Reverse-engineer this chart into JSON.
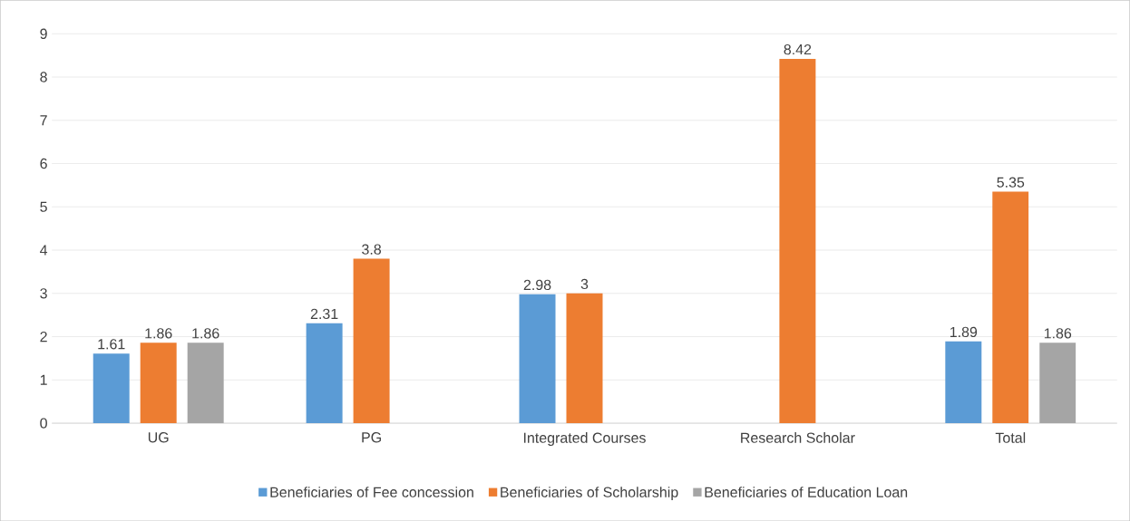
{
  "chart_data": {
    "type": "bar",
    "categories": [
      "UG",
      "PG",
      "Integrated Courses",
      "Research Scholar",
      "Total"
    ],
    "series": [
      {
        "name": "Beneficiaries of Fee concession",
        "color": "#5b9bd5",
        "values": [
          1.61,
          2.31,
          2.98,
          null,
          1.89
        ]
      },
      {
        "name": "Beneficiaries of Scholarship",
        "color": "#ed7d31",
        "values": [
          1.86,
          3.8,
          3,
          8.42,
          5.35
        ]
      },
      {
        "name": "Beneficiaries of Education Loan",
        "color": "#a5a5a5",
        "values": [
          1.86,
          null,
          null,
          null,
          1.86
        ]
      }
    ],
    "ylim": [
      0,
      9
    ],
    "yticks": [
      0,
      1,
      2,
      3,
      4,
      5,
      6,
      7,
      8,
      9
    ],
    "grid": "y",
    "legend": "bottom",
    "data_labels": true
  }
}
